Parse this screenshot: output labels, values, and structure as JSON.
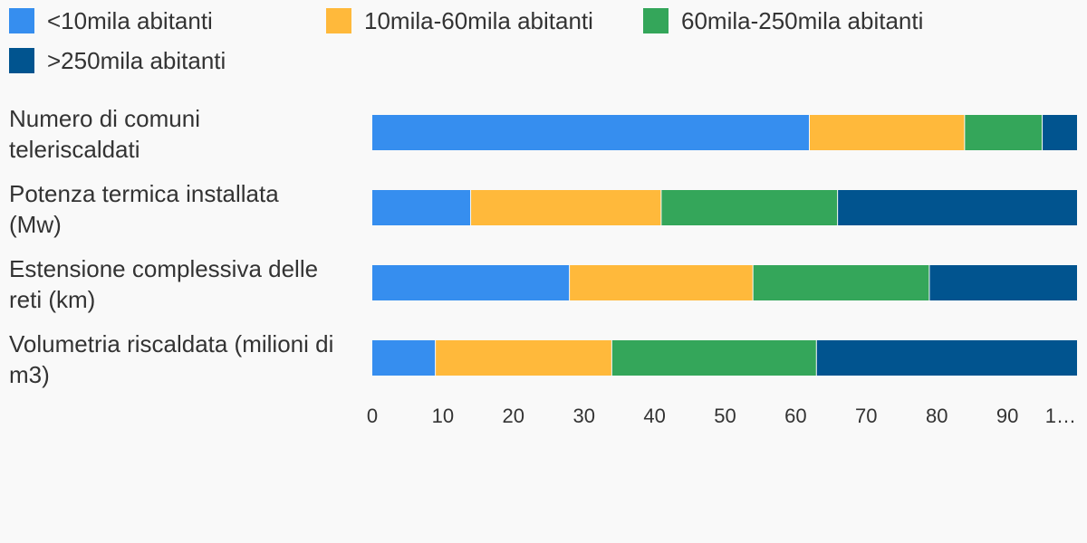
{
  "chart_data": {
    "type": "bar",
    "orientation": "horizontal",
    "stacked": true,
    "categories": [
      "Numero di comuni teleriscaldati",
      "Potenza termica installata (Mw)",
      "Estensione complessiva delle reti (km)",
      "Volumetria riscaldata (milioni di m3)"
    ],
    "category_lines": [
      [
        "Numero di comuni",
        "teleriscaldati"
      ],
      [
        "Potenza termica installata",
        "(Mw)"
      ],
      [
        "Estensione complessiva delle",
        "reti (km)"
      ],
      [
        "Volumetria riscaldata (milioni di",
        "m3)"
      ]
    ],
    "series": [
      {
        "name": "<10mila abitanti",
        "color": "#368eef",
        "values": [
          62,
          14,
          28,
          9
        ]
      },
      {
        "name": "10mila-60mila abitanti",
        "color": "#ffb93b",
        "values": [
          22,
          27,
          26,
          25
        ]
      },
      {
        "name": "60mila-250mila abitanti",
        "color": "#34a65a",
        "values": [
          11,
          25,
          25,
          29
        ]
      },
      {
        "name": ">250mila abitanti",
        "color": "#01548f",
        "values": [
          5,
          34,
          21,
          37
        ]
      }
    ],
    "xlim": [
      0,
      100
    ],
    "x_ticks": [
      "0",
      "10",
      "20",
      "30",
      "40",
      "50",
      "60",
      "70",
      "80",
      "90",
      "1…"
    ],
    "grid": false,
    "legend_position": "top-left"
  }
}
